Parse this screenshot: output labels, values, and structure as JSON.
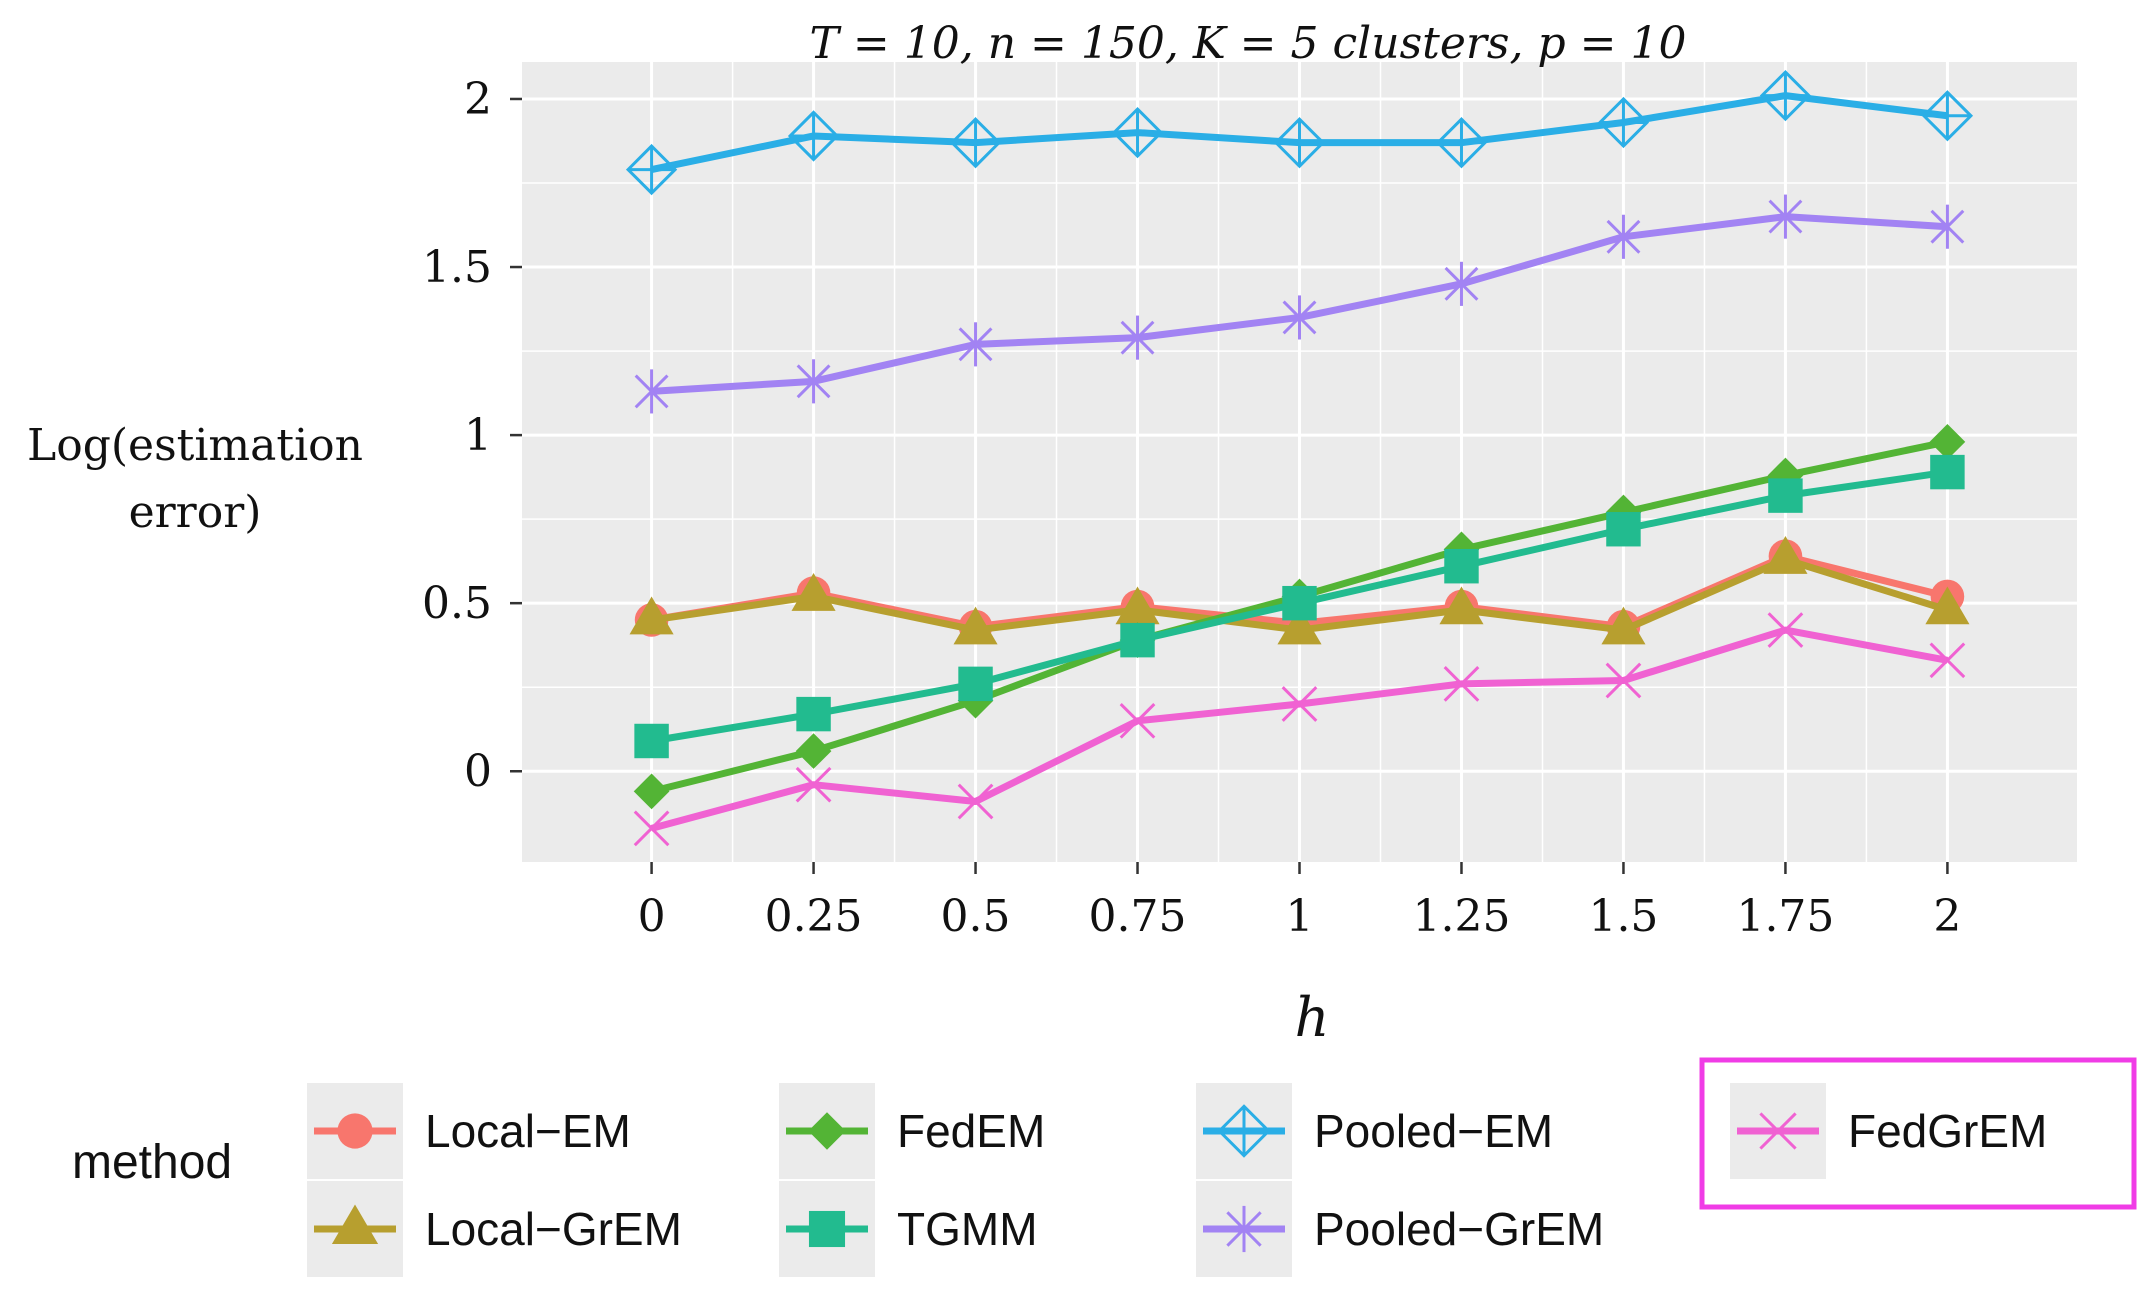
{
  "chart_data": {
    "type": "line",
    "title": "T = 10, n = 150, K = 5 clusters, p  = 10",
    "xlabel": "h",
    "ylabel": [
      "Log(estimation",
      "error)"
    ],
    "x": [
      0,
      0.25,
      0.5,
      0.75,
      1,
      1.25,
      1.5,
      1.75,
      2
    ],
    "x_tick_labels": [
      "0",
      "0.25",
      "0.5",
      "0.75",
      "1",
      "1.25",
      "1.5",
      "1.75",
      "2"
    ],
    "y_ticks": [
      0,
      0.5,
      1,
      1.5,
      2
    ],
    "y_tick_labels": [
      "0",
      "0.5",
      "1",
      "1.5",
      "2"
    ],
    "xlim": [
      -0.2,
      2.2
    ],
    "ylim": [
      -0.27,
      2.11
    ],
    "grid": true,
    "background": "#ebebeb",
    "legend_title": "method",
    "legend_position": "bottom",
    "highlighted_legend_entry": "FedGrEM",
    "highlight_color": "#f03ce6",
    "series": [
      {
        "name": "Local−EM",
        "marker": "circle",
        "color": "#f8766d",
        "values": [
          0.45,
          0.53,
          0.43,
          0.49,
          0.44,
          0.49,
          0.43,
          0.64,
          0.52
        ]
      },
      {
        "name": "Local−GrEM",
        "marker": "triangle",
        "color": "#b79f2f",
        "values": [
          0.45,
          0.52,
          0.42,
          0.48,
          0.42,
          0.48,
          0.42,
          0.63,
          0.48
        ]
      },
      {
        "name": "FedEM",
        "marker": "diamond",
        "color": "#53b435",
        "values": [
          -0.06,
          0.06,
          0.21,
          0.39,
          0.52,
          0.66,
          0.77,
          0.88,
          0.98
        ]
      },
      {
        "name": "TGMM",
        "marker": "square",
        "color": "#22bb8f",
        "values": [
          0.09,
          0.17,
          0.26,
          0.39,
          0.5,
          0.61,
          0.72,
          0.82,
          0.89
        ]
      },
      {
        "name": "Pooled−EM",
        "marker": "diamond-plus",
        "color": "#2aaee6",
        "values": [
          1.79,
          1.89,
          1.87,
          1.9,
          1.87,
          1.87,
          1.93,
          2.01,
          1.95
        ]
      },
      {
        "name": "Pooled−GrEM",
        "marker": "asterisk",
        "color": "#a283f3",
        "values": [
          1.13,
          1.16,
          1.27,
          1.29,
          1.35,
          1.45,
          1.59,
          1.65,
          1.62
        ]
      },
      {
        "name": "FedGrEM",
        "marker": "x",
        "color": "#f062d2",
        "values": [
          -0.17,
          -0.04,
          -0.09,
          0.15,
          0.2,
          0.26,
          0.27,
          0.42,
          0.33
        ]
      }
    ]
  }
}
